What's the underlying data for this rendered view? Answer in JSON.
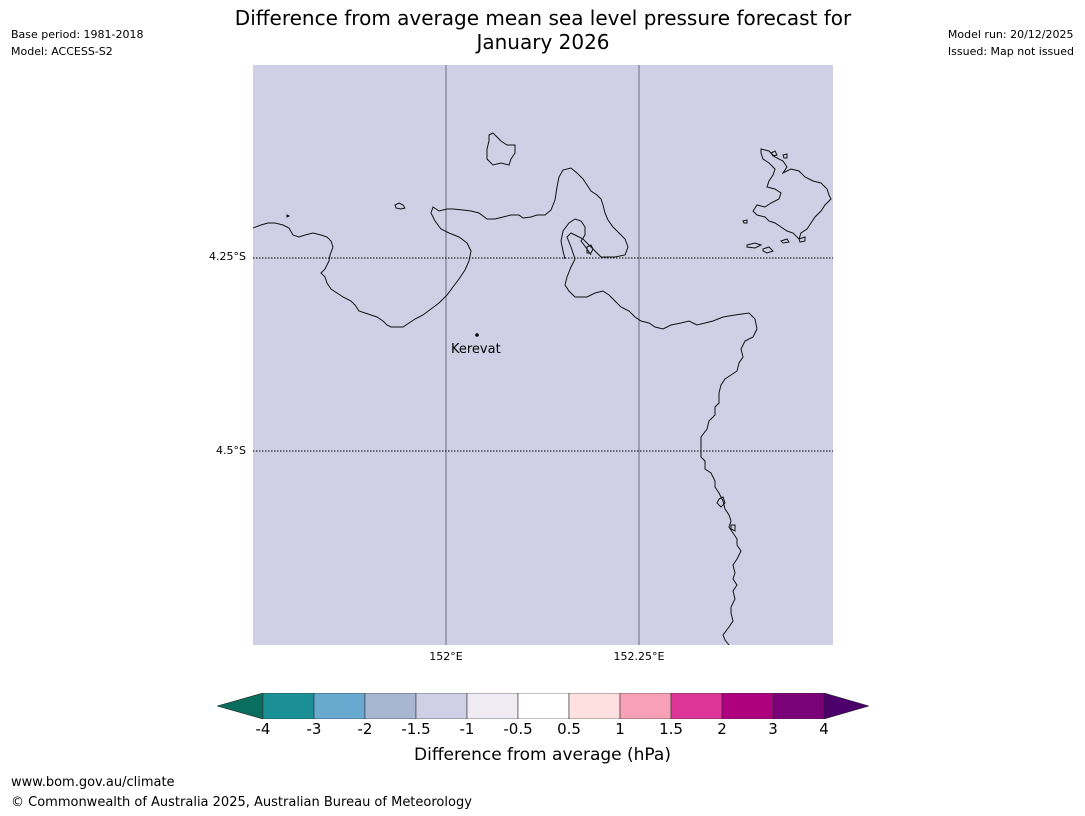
{
  "header": {
    "title_line1": "Difference from average mean sea level pressure forecast for",
    "title_line2": "January 2026",
    "base_period": "Base period: 1981-2018",
    "model": "Model: ACCESS-S2",
    "model_run": "Model run: 20/12/2025",
    "issued": "Issued: Map not issued"
  },
  "map": {
    "background_color": "#cfd0e5",
    "lat_labels": [
      "4.25°S",
      "4.5°S"
    ],
    "lon_labels": [
      "152°E",
      "152.25°E"
    ],
    "place": {
      "name": "Kerevat"
    }
  },
  "colorbar": {
    "title": "Difference from average (hPa)",
    "ticks": [
      "-4",
      "-3",
      "-2",
      "-1.5",
      "-1",
      "-0.5",
      "0.5",
      "1",
      "1.5",
      "2",
      "3",
      "4"
    ],
    "colors": [
      "#1a9096",
      "#67a9cf",
      "#a8b6d3",
      "#cfd0e5",
      "#f0ebf2",
      "#ffffff",
      "#fde0df",
      "#f8a0b5",
      "#dd3497",
      "#ae017e",
      "#7a0177"
    ],
    "under_color": "#0a6e5e",
    "over_color": "#4d006a"
  },
  "footer": {
    "url": "www.bom.gov.au/climate",
    "copyright": "© Commonwealth of Australia 2025, Australian Bureau of Meteorology"
  }
}
